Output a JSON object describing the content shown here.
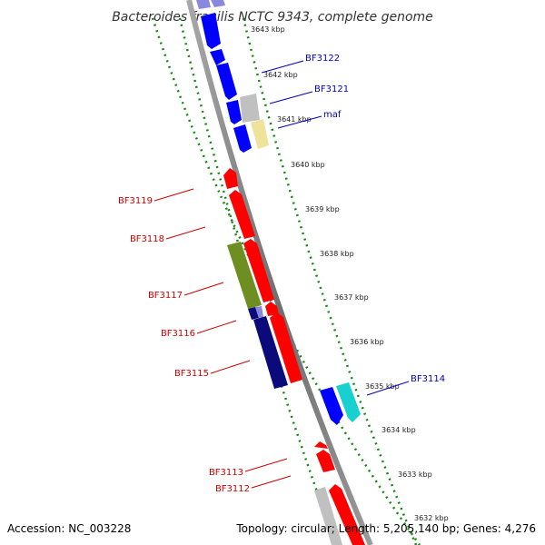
{
  "title": "Bacteroides fragilis NCTC 9343, complete genome",
  "footer": {
    "accession": "Accession: NC_003228",
    "topology": "Topology: circular; Length: 5,205,140 bp; Genes: 4,276"
  },
  "ruler_labels": [
    "3643 kbp",
    "3642 kbp",
    "3641 kbp",
    "3640 kbp",
    "3639 kbp",
    "3638 kbp",
    "3637 kbp",
    "3636 kbp",
    "3635 kbp",
    "3634 kbp",
    "3633 kbp",
    "3632 kbp"
  ],
  "gene_labels": {
    "bf3122": "BF3122",
    "bf3121": "BF3121",
    "maf": "maf",
    "bf3119": "BF3119",
    "bf3118": "BF3118",
    "bf3117": "BF3117",
    "bf3116": "BF3116",
    "bf3115": "BF3115",
    "bf3114": "BF3114",
    "bf3113": "BF3113",
    "bf3112": "BF3112"
  },
  "colors": {
    "backbone": "#7a7a7a",
    "dotted_track": "#118811",
    "gene_red": "#ff0000",
    "gene_blue": "#0000ff",
    "gene_navy": "#0a0a7a",
    "gene_olive": "#6e8e22",
    "gene_cyan": "#18d0d0",
    "gene_gray": "#c0c0c0",
    "gene_yellow": "#efe29a",
    "gene_lavender": "#8888dd",
    "label_red": "#cc0000",
    "label_blue": "#0000bb"
  }
}
